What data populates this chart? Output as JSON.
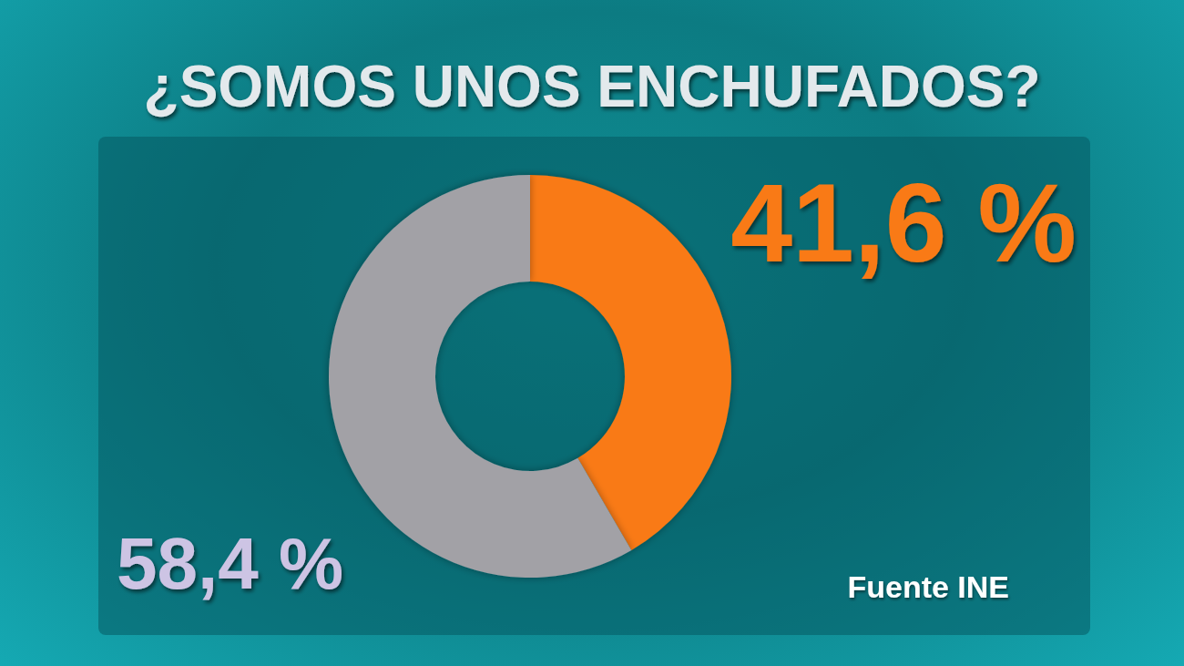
{
  "chart_data": {
    "type": "donut",
    "title": "¿SOMOS UNOS ENCHUFADOS?",
    "categories": [
      null,
      null
    ],
    "values": [
      41.6,
      58.4
    ],
    "colors": [
      "#f97a12",
      "#a2a1a6"
    ],
    "value_labels": [
      "41,6 %",
      "58,4 %"
    ],
    "annotations": [
      "Fuente INE"
    ]
  }
}
